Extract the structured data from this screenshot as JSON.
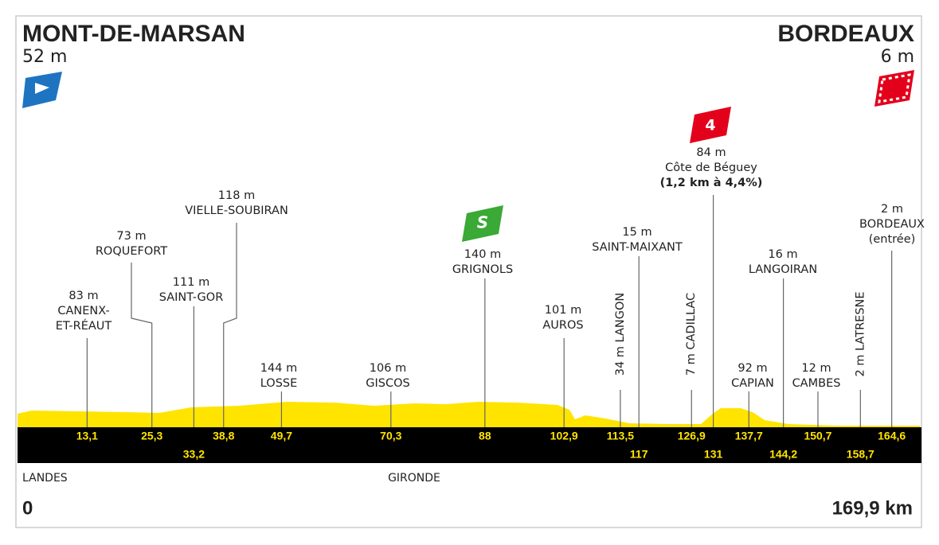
{
  "start": {
    "name": "MONT-DE-MARSAN",
    "altitude": "52 m"
  },
  "finish": {
    "name": "BORDEAUX",
    "altitude": "6 m"
  },
  "sprint_icon": "S",
  "climb_category": "4",
  "points": [
    {
      "altitude": "83 m",
      "name": [
        "CANENX-",
        "ET-RÉAUT"
      ],
      "km": {
        "value": 13.1,
        "label": "13,1"
      }
    },
    {
      "altitude": "73 m",
      "name": [
        "ROQUEFORT"
      ],
      "km": {
        "value": 25.3,
        "label": "25,3"
      }
    },
    {
      "altitude": "111 m",
      "name": [
        "SAINT-GOR"
      ],
      "km": {
        "value": 33.2,
        "label": "33,2"
      }
    },
    {
      "altitude": "118 m",
      "name": [
        "VIELLE-SOUBIRAN"
      ],
      "km": {
        "value": 38.8,
        "label": "38,8"
      }
    },
    {
      "altitude": "144 m",
      "name": [
        "LOSSE"
      ],
      "km": {
        "value": 49.7,
        "label": "49,7"
      }
    },
    {
      "altitude": "106 m",
      "name": [
        "GISCOS"
      ],
      "km": {
        "value": 70.3,
        "label": "70,3"
      }
    },
    {
      "altitude": "140 m",
      "name": [
        "GRIGNOLS"
      ],
      "km": {
        "value": 88,
        "label": "88"
      }
    },
    {
      "altitude": "101 m",
      "name": [
        "AUROS"
      ],
      "km": {
        "value": 102.9,
        "label": "102,9"
      }
    },
    {
      "altitude": "34 m",
      "name": [
        "LANGON"
      ],
      "km": {
        "value": 113.5,
        "label": "113,5"
      },
      "rotated": true
    },
    {
      "altitude": "15 m",
      "name": [
        "SAINT-MAIXANT"
      ],
      "km": {
        "value": 117,
        "label": "117"
      }
    },
    {
      "altitude": "7 m",
      "name": [
        "CADILLAC"
      ],
      "km": {
        "value": 126.9,
        "label": "126,9"
      },
      "rotated": true
    },
    {
      "altitude": "84 m",
      "name": [
        "Côte de Béguey"
      ],
      "detail": "(1,2 km à 4,4%)",
      "km": {
        "value": 131,
        "label": "131"
      }
    },
    {
      "altitude": "92 m",
      "name": [
        "CAPIAN"
      ],
      "km": {
        "value": 137.7,
        "label": "137,7"
      }
    },
    {
      "altitude": "16 m",
      "name": [
        "LANGOIRAN"
      ],
      "km": {
        "value": 144.2,
        "label": "144,2"
      }
    },
    {
      "altitude": "12 m",
      "name": [
        "CAMBES"
      ],
      "km": {
        "value": 150.7,
        "label": "150,7"
      }
    },
    {
      "altitude": "2 m",
      "name": [
        "LATRESNE"
      ],
      "km": {
        "value": 158.7,
        "label": "158,7"
      },
      "rotated": true
    },
    {
      "altitude": "2 m",
      "name": [
        "BORDEAUX",
        "(entrée)"
      ],
      "km": {
        "value": 164.6,
        "label": "164,6"
      }
    }
  ],
  "regions": [
    "LANDES",
    "GIRONDE"
  ],
  "distance_start": 0,
  "distance_total": {
    "value": 169.9,
    "label": "169,9 km"
  }
}
